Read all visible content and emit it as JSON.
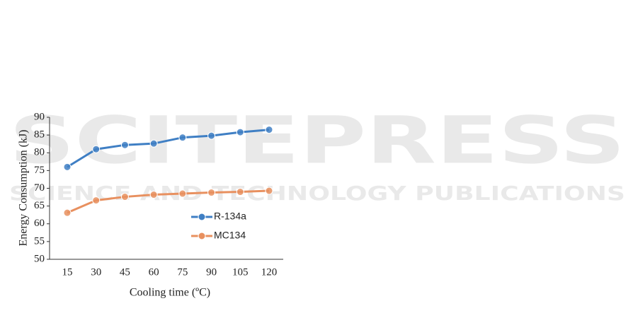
{
  "watermark": {
    "title": "SCITEPRESS",
    "subtitle": "SCIENCE AND TECHNOLOGY PUBLICATIONS"
  },
  "chart_data": {
    "type": "line",
    "x_label": "Cooling time (ºC)",
    "y_label": "Energy Consumption (kJ)",
    "categories": [
      "15",
      "30",
      "45",
      "60",
      "75",
      "90",
      "105",
      "120"
    ],
    "series": [
      {
        "name": "R-134a",
        "color": "#3f7fc4",
        "values": [
          76,
          81,
          82.2,
          82.6,
          84.3,
          84.8,
          85.8,
          86.5
        ]
      },
      {
        "name": "MC134",
        "color": "#e8905f",
        "values": [
          63.1,
          66.6,
          67.6,
          68.2,
          68.5,
          68.8,
          69,
          69.3
        ]
      }
    ],
    "ylim": [
      50,
      90
    ],
    "yticks": [
      50,
      55,
      60,
      65,
      70,
      75,
      80,
      85,
      90
    ]
  }
}
